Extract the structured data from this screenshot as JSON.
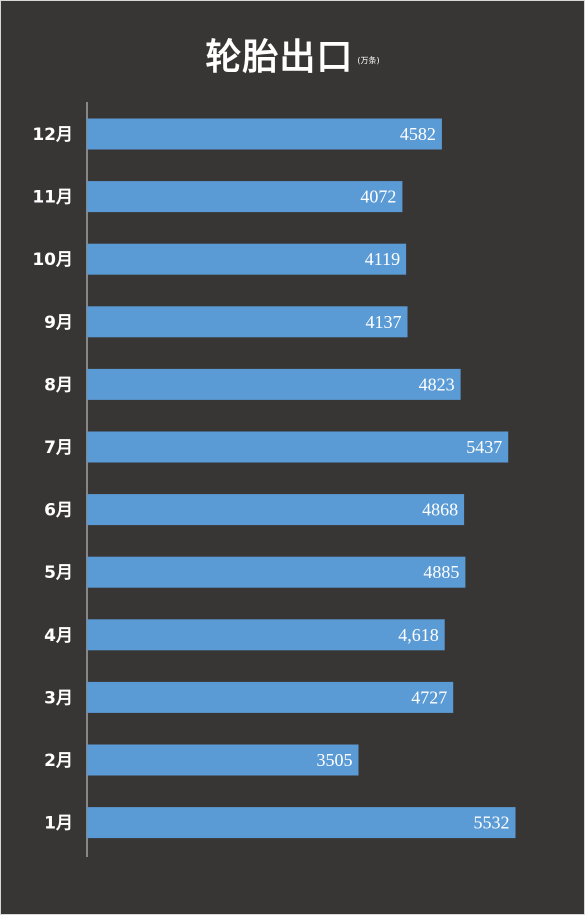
{
  "chart_data": {
    "type": "bar",
    "orientation": "horizontal",
    "title": "轮胎出口",
    "unit": "(万条)",
    "categories": [
      "12月",
      "11月",
      "10月",
      "9月",
      "8月",
      "7月",
      "6月",
      "5月",
      "4月",
      "3月",
      "2月",
      "1月"
    ],
    "values": [
      4582,
      4072,
      4119,
      4137,
      4823,
      5437,
      4868,
      4885,
      4618,
      4727,
      3505,
      5532
    ],
    "value_labels": [
      "4582",
      "4072",
      "4119",
      "4137",
      "4823",
      "5437",
      "4868",
      "4885",
      "4,618",
      "4727",
      "3505",
      "5532"
    ],
    "xlim": [
      0,
      5600
    ],
    "grid": false,
    "legend": "none",
    "bar_color": "#5b9bd5",
    "background_color": "#383634"
  }
}
